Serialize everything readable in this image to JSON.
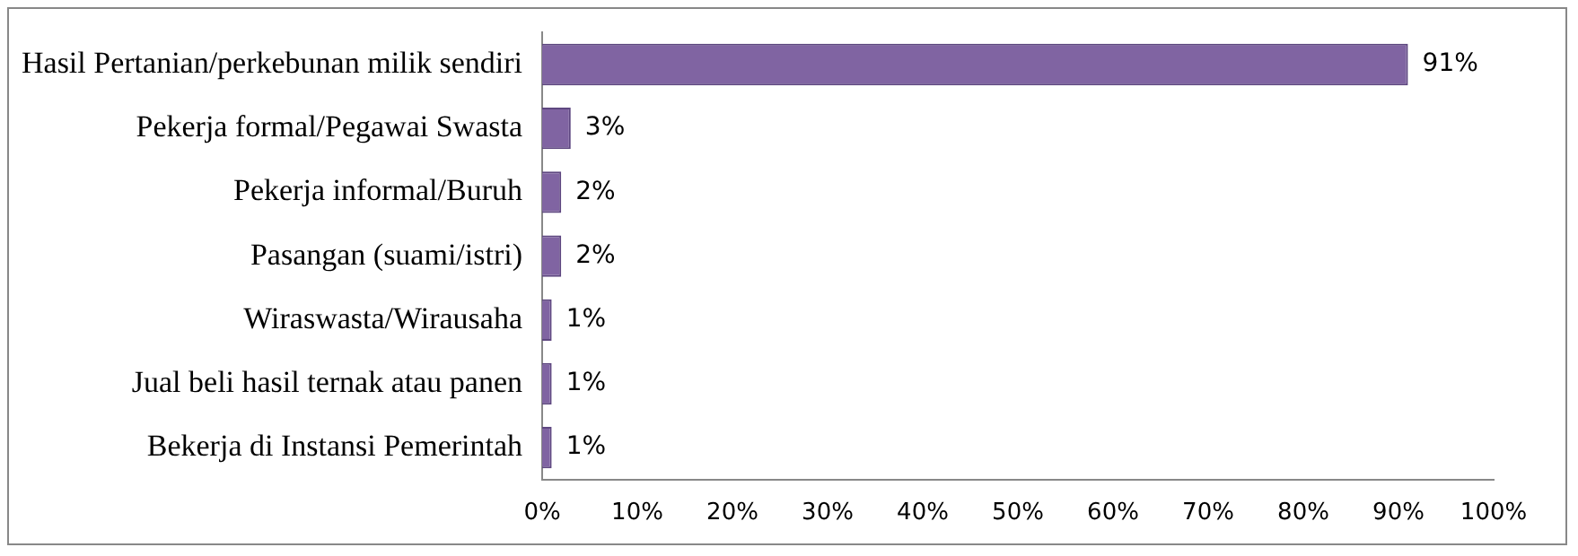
{
  "chart_data": {
    "type": "bar",
    "orientation": "horizontal",
    "categories": [
      "Hasil Pertanian/perkebunan milik sendiri",
      "Pekerja formal/Pegawai Swasta",
      "Pekerja informal/Buruh",
      "Pasangan (suami/istri)",
      "Wiraswasta/Wirausaha",
      "Jual beli hasil ternak atau panen",
      "Bekerja di Instansi Pemerintah"
    ],
    "values": [
      91,
      3,
      2,
      2,
      1,
      1,
      1
    ],
    "value_labels": [
      "91%",
      "3%",
      "2%",
      "2%",
      "1%",
      "1%",
      "1%"
    ],
    "color": "#8064a2",
    "xlim": [
      0,
      100
    ],
    "xticks": [
      {
        "value": 0,
        "label": "0%"
      },
      {
        "value": 10,
        "label": "10%"
      },
      {
        "value": 20,
        "label": "20%"
      },
      {
        "value": 30,
        "label": "30%"
      },
      {
        "value": 40,
        "label": "40%"
      },
      {
        "value": 50,
        "label": "50%"
      },
      {
        "value": 60,
        "label": "60%"
      },
      {
        "value": 70,
        "label": "70%"
      },
      {
        "value": 80,
        "label": "80%"
      },
      {
        "value": 90,
        "label": "90%"
      },
      {
        "value": 100,
        "label": "100%"
      }
    ],
    "grid": false,
    "legend": false
  }
}
